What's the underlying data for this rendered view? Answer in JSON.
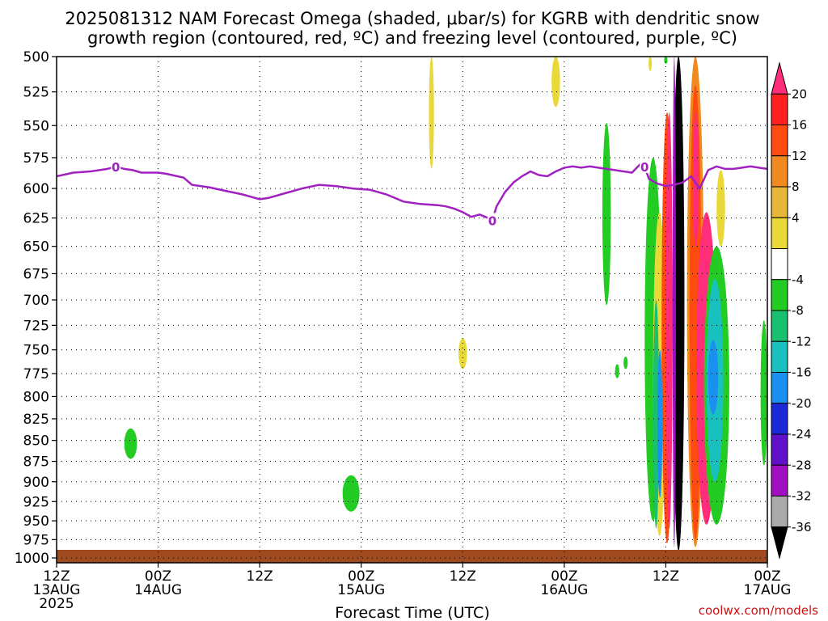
{
  "title_line1": "2025081312 NAM Forecast Omega (shaded, μbar/s) for KGRB with dendritic snow",
  "title_line2": "growth region (contoured, red, ºC) and freezing level (contoured, purple, ºC)",
  "credit": "coolwx.com/models",
  "chart_data": {
    "type": "heatmap",
    "title": "2025081312 NAM Forecast Omega (shaded, μbar/s) for KGRB with dendritic snow growth region (contoured, red, ºC) and freezing level (contoured, purple, ºC)",
    "xlabel": "Forecast Time (UTC)",
    "ylabel": "",
    "xlim": [
      0,
      84
    ],
    "x_unit": "forecast hours from 2025-08-13 12Z",
    "ylim": [
      500,
      1000
    ],
    "y_unit": "hPa",
    "y_scale": "log-pressure",
    "grid": true,
    "y_ticks": [
      500,
      525,
      550,
      575,
      600,
      625,
      650,
      675,
      700,
      725,
      750,
      775,
      800,
      825,
      850,
      875,
      900,
      925,
      950,
      975,
      1000
    ],
    "x_ticks": [
      {
        "x": 0,
        "l1": "12Z",
        "l2": "13AUG",
        "l3": "2025"
      },
      {
        "x": 12,
        "l1": "00Z",
        "l2": "14AUG",
        "l3": ""
      },
      {
        "x": 24,
        "l1": "12Z",
        "l2": "",
        "l3": ""
      },
      {
        "x": 36,
        "l1": "00Z",
        "l2": "15AUG",
        "l3": ""
      },
      {
        "x": 48,
        "l1": "12Z",
        "l2": "",
        "l3": ""
      },
      {
        "x": 60,
        "l1": "00Z",
        "l2": "16AUG",
        "l3": ""
      },
      {
        "x": 72,
        "l1": "12Z",
        "l2": "",
        "l3": ""
      },
      {
        "x": 84,
        "l1": "00Z",
        "l2": "17AUG",
        "l3": ""
      }
    ],
    "colorbar": {
      "label_values": [
        20,
        16,
        12,
        8,
        4,
        -4,
        -8,
        -12,
        -16,
        -20,
        -24,
        -28,
        -32,
        -36
      ],
      "bins": [
        {
          "color": "#ff2d7a",
          "end": "top-arrow"
        },
        {
          "color": "#ff2020"
        },
        {
          "color": "#ff4a10"
        },
        {
          "color": "#f08a20"
        },
        {
          "color": "#e8b63a"
        },
        {
          "color": "#e8d838"
        },
        {
          "color": "#ffffff"
        },
        {
          "color": "#22cc22"
        },
        {
          "color": "#18c070"
        },
        {
          "color": "#18c0c0"
        },
        {
          "color": "#1a90f0"
        },
        {
          "color": "#1a2ad8"
        },
        {
          "color": "#6010c8"
        },
        {
          "color": "#a010c0"
        },
        {
          "color": "#aaaaaa"
        },
        {
          "color": "#000000",
          "end": "bottom-arrow"
        }
      ]
    },
    "freezing_level": {
      "color": "#a020c0",
      "label": "0",
      "label_at": [
        7,
        51.5,
        69.5
      ],
      "x": [
        0,
        2,
        4,
        6,
        7,
        8,
        9,
        10,
        12,
        13,
        15,
        16,
        18,
        20,
        22,
        24,
        25,
        27,
        29,
        31,
        33,
        35,
        37,
        39,
        41,
        43,
        45,
        46,
        47,
        48,
        49,
        50,
        51,
        51.5
      ],
      "y": [
        590,
        587,
        586,
        584,
        582,
        584,
        585,
        587,
        587,
        588,
        591,
        597,
        599,
        602,
        605,
        609,
        608,
        604,
        600,
        597,
        598,
        600,
        601,
        605,
        611,
        613,
        614,
        615,
        617,
        620,
        624,
        622,
        625,
        627
      ]
    },
    "freezing_level_2": {
      "x": [
        51.5,
        52,
        53,
        54,
        55,
        56,
        57,
        58,
        59,
        60,
        61,
        62,
        63,
        64,
        65,
        66,
        67,
        68,
        69,
        69.5,
        70,
        71,
        72,
        73,
        74,
        75,
        76,
        77,
        78,
        79,
        80,
        81,
        82,
        83,
        84
      ],
      "y": [
        627,
        615,
        603,
        595,
        590,
        586,
        589,
        590,
        586,
        583,
        582,
        583,
        582,
        583,
        584,
        585,
        586,
        587,
        580,
        582,
        592,
        596,
        598,
        597,
        595,
        590,
        600,
        585,
        582,
        584,
        584,
        583,
        582,
        583,
        584
      ]
    },
    "omega_features": [
      {
        "x": [
          44,
          44.6
        ],
        "p": [
          500,
          584
        ],
        "v": 6
      },
      {
        "x": [
          58.5,
          59.5
        ],
        "p": [
          500,
          536
        ],
        "v": 6
      },
      {
        "x": [
          47.5,
          48.5
        ],
        "p": [
          738,
          770
        ],
        "v": 6
      },
      {
        "x": [
          64.5,
          65.5
        ],
        "p": [
          548,
          705
        ],
        "v": -6
      },
      {
        "x": [
          66,
          66.5
        ],
        "p": [
          765,
          780
        ],
        "v": -6
      },
      {
        "x": [
          67,
          67.5
        ],
        "p": [
          757,
          770
        ],
        "v": -6
      },
      {
        "x": [
          8.0,
          9.5
        ],
        "p": [
          836,
          872
        ],
        "v": -6
      },
      {
        "x": [
          33.8,
          35.8
        ],
        "p": [
          892,
          938
        ],
        "v": -6
      },
      {
        "x": [
          83.2,
          84
        ],
        "p": [
          720,
          880
        ],
        "v": -6
      },
      {
        "x": [
          69.5,
          71.5
        ],
        "p": [
          575,
          950
        ],
        "v": -6
      },
      {
        "x": [
          70.5,
          72
        ],
        "p": [
          620,
          970
        ],
        "v": 6
      },
      {
        "x": [
          71.5,
          72.8
        ],
        "p": [
          540,
          980
        ],
        "v": 12
      },
      {
        "x": [
          72,
          72.8
        ],
        "p": [
          540,
          960
        ],
        "v": 20
      },
      {
        "x": [
          70.5,
          71.2
        ],
        "p": [
          700,
          960
        ],
        "v": -10
      },
      {
        "x": [
          71.0,
          71.6
        ],
        "p": [
          750,
          920
        ],
        "v": -18
      },
      {
        "x": [
          72.8,
          74.2
        ],
        "p": [
          500,
          990
        ],
        "v": -36
      },
      {
        "x": [
          72.9,
          73.1
        ],
        "p": [
          500,
          985
        ],
        "v": -28
      },
      {
        "x": [
          74.5,
          76.5
        ],
        "p": [
          500,
          985
        ],
        "v": 10
      },
      {
        "x": [
          74.8,
          76.2
        ],
        "p": [
          520,
          975
        ],
        "v": 14
      },
      {
        "x": [
          75.2,
          75.9
        ],
        "p": [
          540,
          650
        ],
        "v": 20
      },
      {
        "x": [
          75.6,
          78
        ],
        "p": [
          620,
          955
        ],
        "v": 20
      },
      {
        "x": [
          76.5,
          79.5
        ],
        "p": [
          650,
          955
        ],
        "v": -6
      },
      {
        "x": [
          76.8,
          78.8
        ],
        "p": [
          680,
          900
        ],
        "v": -12
      },
      {
        "x": [
          77,
          78.2
        ],
        "p": [
          740,
          820
        ],
        "v": -18
      },
      {
        "x": [
          78,
          79
        ],
        "p": [
          585,
          650
        ],
        "v": 6
      },
      {
        "x": [
          70,
          70.3
        ],
        "p": [
          500,
          510
        ],
        "v": 6
      },
      {
        "x": [
          71.8,
          72.2
        ],
        "p": [
          500,
          505
        ],
        "v": -6
      }
    ],
    "surface_color": "#a04a20"
  }
}
